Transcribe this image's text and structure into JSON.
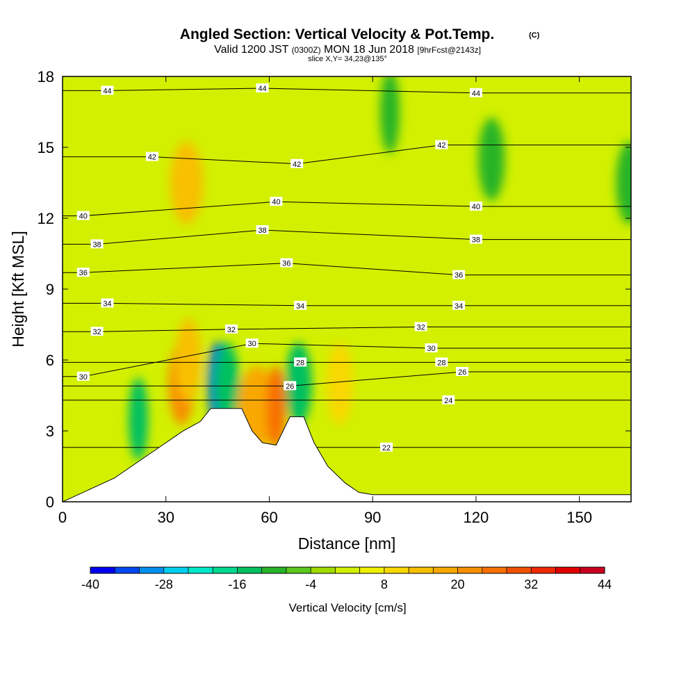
{
  "title": {
    "main": "Angled Section: Vertical Velocity & Pot.Temp.",
    "main_unit": "(C)",
    "valid_prefix": "Valid 1200 JST",
    "valid_z": "(0300Z)",
    "valid_date": "MON 18 Jun 2018",
    "forecast": "[9hrFcst@2143z]",
    "slice": "slice X,Y= 34,23@135°"
  },
  "chart_data": {
    "type": "heatmap",
    "title": "Angled Section: Vertical Velocity & Pot.Temp. (C)",
    "subtitle": "Valid 1200 JST (0300Z) MON 18 Jun 2018 [9hrFcst@2143z]",
    "xlabel": "Distance [nm]",
    "ylabel": "Height [Kft MSL]",
    "xlim": [
      0,
      165
    ],
    "ylim": [
      0,
      18
    ],
    "x_ticks": [
      "0",
      "30",
      "60",
      "90",
      "120",
      "150"
    ],
    "y_ticks": [
      "0",
      "3",
      "6",
      "9",
      "12",
      "15",
      "18"
    ],
    "grid": false,
    "fill_variable": "Vertical Velocity [cm/s]",
    "colorbar": {
      "label": "Vertical Velocity [cm/s]",
      "min": -40,
      "max": 44,
      "step": 4,
      "tick_labels": [
        "-40",
        "-28",
        "-16",
        "-4",
        "8",
        "20",
        "32",
        "44"
      ],
      "colors": [
        "#0000f0",
        "#0048f0",
        "#0090f0",
        "#00d0f0",
        "#00e8c8",
        "#00d890",
        "#00c060",
        "#28b428",
        "#5ac81e",
        "#a0dc00",
        "#d2f000",
        "#f0f000",
        "#f8d800",
        "#f8c000",
        "#f8a800",
        "#f89000",
        "#f87000",
        "#f05000",
        "#f02800",
        "#e00000",
        "#c80020",
        "#b00040",
        "#8c0060",
        "#6c0080",
        "#480090"
      ],
      "background": "#d2f000"
    },
    "wind_regions": [
      {
        "x": [
          35,
          34
        ],
        "z": [
          4.5,
          5.5
        ],
        "w": 20
      },
      {
        "x": [
          36,
          37
        ],
        "z": [
          5.5,
          6.5
        ],
        "w": 12
      },
      {
        "x": [
          45,
          45
        ],
        "z": [
          4.5,
          5.5
        ],
        "w": -36
      },
      {
        "x": [
          47,
          48
        ],
        "z": [
          4.5,
          5.5
        ],
        "w": -16
      },
      {
        "x": [
          55,
          58
        ],
        "z": [
          3.5,
          4.5
        ],
        "w": 16
      },
      {
        "x": [
          62,
          62
        ],
        "z": [
          3.5,
          4.5
        ],
        "w": 24
      },
      {
        "x": [
          68,
          69
        ],
        "z": [
          4.5,
          5.5
        ],
        "w": -16
      },
      {
        "x": [
          37,
          35
        ],
        "z": [
          13.0,
          14.0
        ],
        "w": 12
      },
      {
        "x": [
          22,
          22
        ],
        "z": [
          3.0,
          4.0
        ],
        "w": -16
      },
      {
        "x": [
          80,
          81
        ],
        "z": [
          4.5,
          5.5
        ],
        "w": 8
      },
      {
        "x": [
          95,
          95
        ],
        "z": [
          16.0,
          17.0
        ],
        "w": -12
      },
      {
        "x": [
          125,
          124
        ],
        "z": [
          14.0,
          15.0
        ],
        "w": -12
      },
      {
        "x": [
          165,
          164
        ],
        "z": [
          13.0,
          14.0
        ],
        "w": -12
      }
    ],
    "isentrope_levels": [
      22,
      24,
      26,
      28,
      30,
      32,
      34,
      36,
      38,
      40,
      42,
      44
    ],
    "isentrope_labels": [
      {
        "value": "44",
        "x": 13,
        "z": 17.4
      },
      {
        "value": "44",
        "x": 58,
        "z": 17.5
      },
      {
        "value": "44",
        "x": 120,
        "z": 17.3
      },
      {
        "value": "42",
        "x": 26,
        "z": 14.6
      },
      {
        "value": "42",
        "x": 68,
        "z": 14.3
      },
      {
        "value": "42",
        "x": 110,
        "z": 15.1
      },
      {
        "value": "40",
        "x": 6,
        "z": 12.1
      },
      {
        "value": "40",
        "x": 62,
        "z": 12.7
      },
      {
        "value": "40",
        "x": 120,
        "z": 12.5
      },
      {
        "value": "38",
        "x": 10,
        "z": 10.9
      },
      {
        "value": "38",
        "x": 58,
        "z": 11.5
      },
      {
        "value": "38",
        "x": 120,
        "z": 11.1
      },
      {
        "value": "36",
        "x": 6,
        "z": 9.7
      },
      {
        "value": "36",
        "x": 65,
        "z": 10.1
      },
      {
        "value": "36",
        "x": 115,
        "z": 9.6
      },
      {
        "value": "34",
        "x": 13,
        "z": 8.4
      },
      {
        "value": "34",
        "x": 69,
        "z": 8.3
      },
      {
        "value": "34",
        "x": 115,
        "z": 8.3
      },
      {
        "value": "32",
        "x": 10,
        "z": 7.2
      },
      {
        "value": "32",
        "x": 49,
        "z": 7.3
      },
      {
        "value": "32",
        "x": 104,
        "z": 7.4
      },
      {
        "value": "30",
        "x": 6,
        "z": 5.3
      },
      {
        "value": "30",
        "x": 55,
        "z": 6.7
      },
      {
        "value": "30",
        "x": 107,
        "z": 6.5
      },
      {
        "value": "28",
        "x": 69,
        "z": 5.9
      },
      {
        "value": "28",
        "x": 110,
        "z": 5.9
      },
      {
        "value": "26",
        "x": 66,
        "z": 4.9
      },
      {
        "value": "26",
        "x": 116,
        "z": 5.5
      },
      {
        "value": "24",
        "x": 112,
        "z": 4.3
      },
      {
        "value": "22",
        "x": 94,
        "z": 2.3
      }
    ],
    "terrain": [
      {
        "x": 0,
        "z": 0
      },
      {
        "x": 9,
        "z": 0.6
      },
      {
        "x": 15,
        "z": 1.0
      },
      {
        "x": 20,
        "z": 1.5
      },
      {
        "x": 25,
        "z": 2.0
      },
      {
        "x": 30,
        "z": 2.5
      },
      {
        "x": 35,
        "z": 3.0
      },
      {
        "x": 40,
        "z": 3.4
      },
      {
        "x": 43,
        "z": 3.95
      },
      {
        "x": 52,
        "z": 3.95
      },
      {
        "x": 55,
        "z": 3.0
      },
      {
        "x": 58,
        "z": 2.5
      },
      {
        "x": 62,
        "z": 2.4
      },
      {
        "x": 66,
        "z": 3.6
      },
      {
        "x": 70,
        "z": 3.6
      },
      {
        "x": 73,
        "z": 2.5
      },
      {
        "x": 77,
        "z": 1.5
      },
      {
        "x": 82,
        "z": 0.8
      },
      {
        "x": 86,
        "z": 0.4
      },
      {
        "x": 90,
        "z": 0.3
      },
      {
        "x": 165,
        "z": 0.3
      }
    ]
  }
}
